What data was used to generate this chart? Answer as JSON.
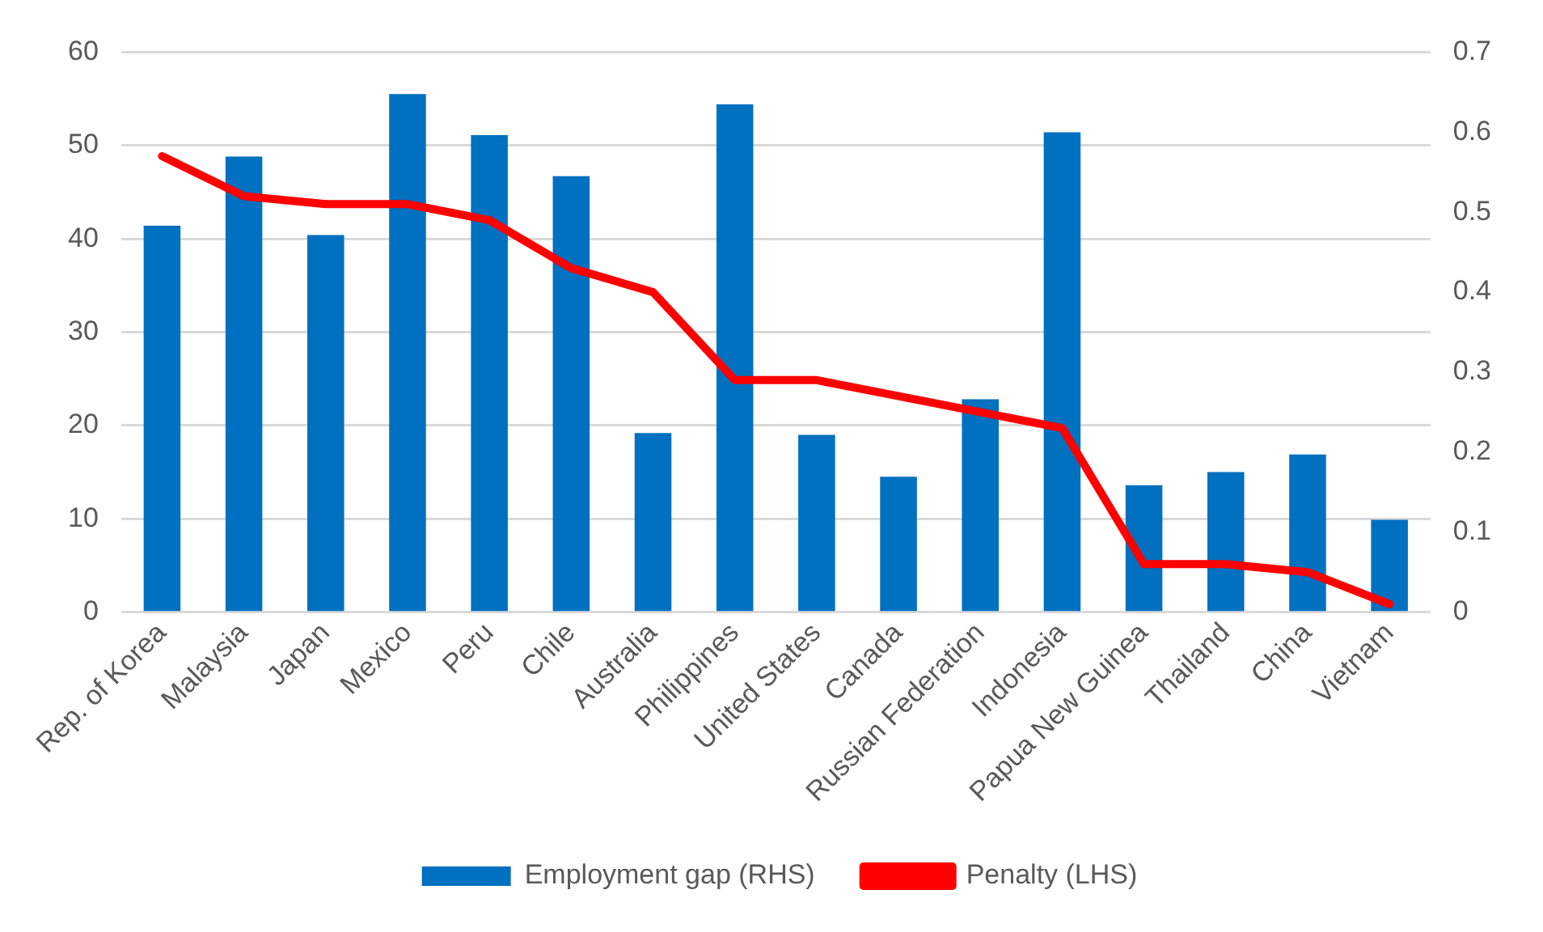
{
  "chart_data": {
    "type": "bar",
    "categories": [
      "Rep. of Korea",
      "Malaysia",
      "Japan",
      "Mexico",
      "Peru",
      "Chile",
      "Australia",
      "Philippines",
      "United States",
      "Canada",
      "Russian Federation",
      "Indonesia",
      "Papua New Guinea",
      "Thailand",
      "China",
      "Vietnam"
    ],
    "series": [
      {
        "name": "Employment gap (RHS)",
        "color": "#0070c0",
        "values": [
          41.4,
          48.8,
          40.4,
          55.5,
          51.1,
          46.7,
          19.2,
          54.4,
          19.0,
          14.5,
          22.8,
          51.4,
          13.6,
          15.0,
          16.9,
          9.9
        ]
      },
      {
        "name": "Penalty (LHS)",
        "type": "line",
        "axis": "y2",
        "color": "#ff0000",
        "values": [
          0.57,
          0.52,
          0.51,
          0.51,
          0.49,
          0.43,
          0.4,
          0.29,
          0.29,
          0.27,
          0.25,
          0.23,
          0.06,
          0.06,
          0.05,
          0.01
        ]
      }
    ],
    "ylim": [
      0,
      60
    ],
    "yticks": [
      0,
      10,
      20,
      30,
      40,
      50,
      60
    ],
    "y2lim": [
      0,
      0.7
    ],
    "y2ticks": [
      0,
      0.1,
      0.2,
      0.3,
      0.4,
      0.5,
      0.6,
      0.7
    ],
    "grid": "y",
    "legend": "bottom",
    "marker": "none",
    "line_style": "solid"
  }
}
